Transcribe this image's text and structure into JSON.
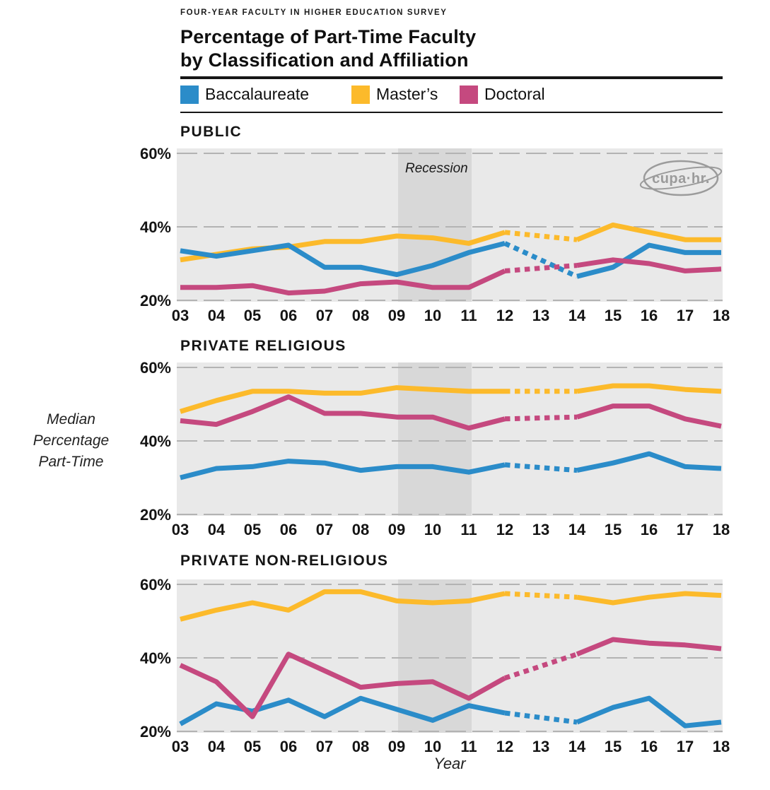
{
  "header": {
    "kicker": "FOUR-YEAR FACULTY IN HIGHER EDUCATION SURVEY",
    "title_line1": "Percentage of Part-Time Faculty",
    "title_line2": "by Classification and Affiliation"
  },
  "legend": [
    {
      "label": "Baccalaureate",
      "color": "#2b8cc9"
    },
    {
      "label": "Master’s",
      "color": "#fcba2b"
    },
    {
      "label": "Doctoral",
      "color": "#c5497f"
    }
  ],
  "axis": {
    "y_label_lines": [
      "Median",
      "Percentage",
      "Part-Time"
    ],
    "x_label": "Year",
    "y_ticks": [
      "60%",
      "40%",
      "20%"
    ]
  },
  "annotations": {
    "recession_label": "Recession",
    "logo_text": "cupa·hr."
  },
  "colors": {
    "plot_background": "#e9e9e9",
    "recession_band": "#d8d8d8",
    "gridline": "#b3b3b3",
    "logo_gray": "#9b9b9b"
  },
  "chart_data": [
    {
      "type": "line",
      "title": "PUBLIC",
      "x": [
        "03",
        "04",
        "05",
        "06",
        "07",
        "08",
        "09",
        "10",
        "11",
        "12",
        "13",
        "14",
        "15",
        "16",
        "17",
        "18"
      ],
      "ylim": [
        20,
        60
      ],
      "y_tick_values": [
        60,
        40,
        20
      ],
      "grid": true,
      "legend_position": "top",
      "dashed_between": [
        "12",
        "14"
      ],
      "recession_span": [
        "09",
        "11"
      ],
      "series": [
        {
          "name": "Baccalaureate",
          "values": [
            33.5,
            32,
            33.5,
            35,
            29,
            29,
            27,
            29.5,
            33,
            35.5,
            null,
            26.5,
            29,
            35,
            33,
            33
          ]
        },
        {
          "name": "Master’s",
          "values": [
            31,
            32.5,
            34,
            34.5,
            36,
            36,
            37.5,
            37,
            35.5,
            38.5,
            null,
            36.5,
            40.5,
            38.5,
            36.5,
            36.5
          ]
        },
        {
          "name": "Doctoral",
          "values": [
            23.5,
            23.5,
            24,
            22,
            22.5,
            24.5,
            25,
            23.5,
            23.5,
            28,
            null,
            29.5,
            31,
            30,
            28,
            28.5
          ]
        }
      ]
    },
    {
      "type": "line",
      "title": "PRIVATE RELIGIOUS",
      "x": [
        "03",
        "04",
        "05",
        "06",
        "07",
        "08",
        "09",
        "10",
        "11",
        "12",
        "13",
        "14",
        "15",
        "16",
        "17",
        "18"
      ],
      "ylim": [
        20,
        60
      ],
      "y_tick_values": [
        60,
        40,
        20
      ],
      "grid": true,
      "dashed_between": [
        "12",
        "14"
      ],
      "recession_span": [
        "09",
        "11"
      ],
      "series": [
        {
          "name": "Baccalaureate",
          "values": [
            30,
            32.5,
            33,
            34.5,
            34,
            32,
            33,
            33,
            31.5,
            33.5,
            null,
            32,
            34,
            36.5,
            33,
            32.5
          ]
        },
        {
          "name": "Master’s",
          "values": [
            48,
            51,
            53.5,
            53.5,
            53,
            53,
            54.5,
            54,
            53.5,
            53.5,
            null,
            53.5,
            55,
            55,
            54,
            53.5
          ]
        },
        {
          "name": "Doctoral",
          "values": [
            45.5,
            44.5,
            48,
            52,
            47.5,
            47.5,
            46.5,
            46.5,
            43.5,
            46,
            null,
            46.5,
            49.5,
            49.5,
            46,
            44
          ]
        }
      ]
    },
    {
      "type": "line",
      "title": "PRIVATE NON-RELIGIOUS",
      "x": [
        "03",
        "04",
        "05",
        "06",
        "07",
        "08",
        "09",
        "10",
        "11",
        "12",
        "13",
        "14",
        "15",
        "16",
        "17",
        "18"
      ],
      "ylim": [
        20,
        60
      ],
      "y_tick_values": [
        60,
        40,
        20
      ],
      "grid": true,
      "dashed_between": [
        "12",
        "14"
      ],
      "recession_span": [
        "09",
        "11"
      ],
      "series": [
        {
          "name": "Baccalaureate",
          "values": [
            22,
            27.5,
            25.5,
            28.5,
            24,
            29,
            26,
            23,
            27,
            25,
            null,
            22.5,
            26.5,
            29,
            21.5,
            22.5
          ]
        },
        {
          "name": "Master’s",
          "values": [
            50.5,
            53,
            55,
            53,
            58,
            58,
            55.5,
            55,
            55.5,
            57.5,
            null,
            56.5,
            55,
            56.5,
            57.5,
            57
          ]
        },
        {
          "name": "Doctoral",
          "values": [
            38,
            33.5,
            24,
            41,
            36.5,
            32,
            33,
            33.5,
            29,
            34.5,
            null,
            41,
            45,
            44,
            43.5,
            42.5
          ]
        }
      ]
    }
  ]
}
